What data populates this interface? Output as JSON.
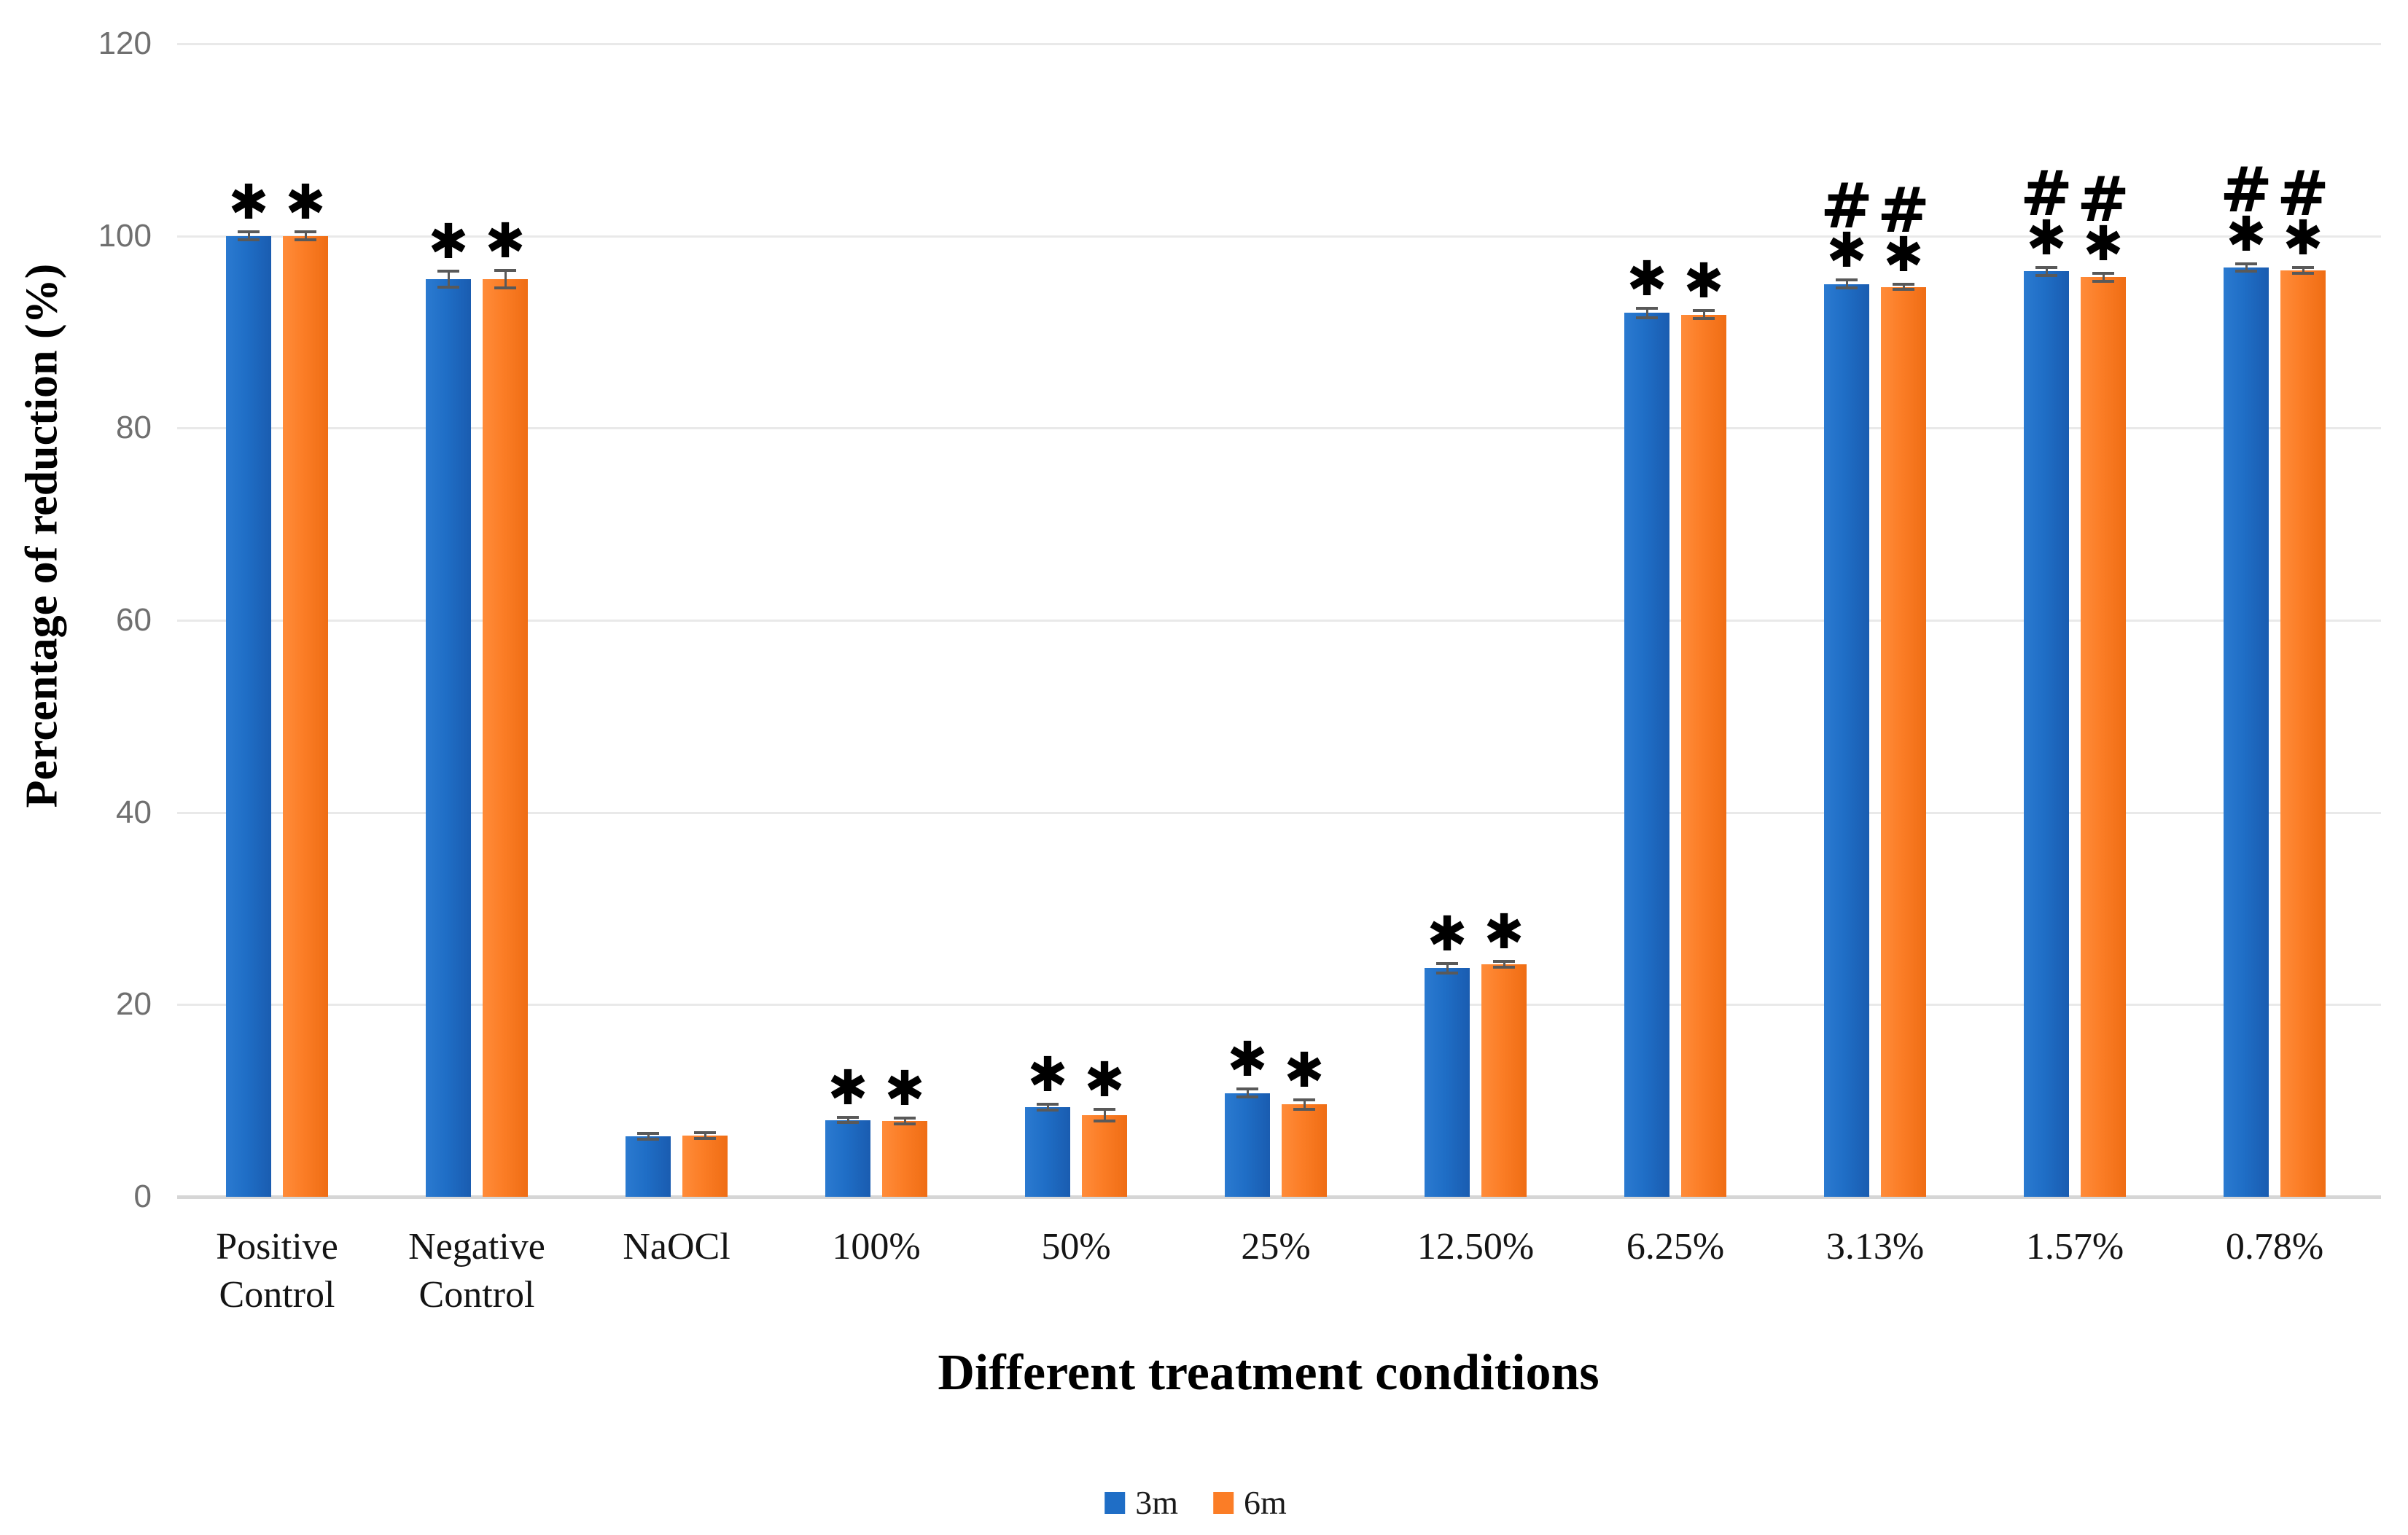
{
  "chart_data": {
    "type": "bar",
    "title": "",
    "xlabel": "Different treatment conditions",
    "ylabel": "Percentage of reduction (%)",
    "ylim": [
      0,
      120
    ],
    "yticks": [
      0,
      20,
      40,
      60,
      80,
      100,
      120
    ],
    "grid": true,
    "legend_position": "bottom-center",
    "categories": [
      "Positive\nControl",
      "Negative\nControl",
      "NaOCl",
      "100%",
      "50%",
      "25%",
      "12.50%",
      "6.25%",
      "3.13%",
      "1.57%",
      "0.78%"
    ],
    "series": [
      {
        "name": "3m",
        "color": "#1F6EC6",
        "values": [
          100,
          95.5,
          6.3,
          8.0,
          9.3,
          10.8,
          23.8,
          92.0,
          95.0,
          96.3,
          96.7
        ],
        "errors": [
          0.4,
          0.8,
          0.3,
          0.3,
          0.3,
          0.4,
          0.5,
          0.5,
          0.4,
          0.4,
          0.4
        ]
      },
      {
        "name": "6m",
        "color": "#FB7D26",
        "values": [
          100,
          95.5,
          6.4,
          7.9,
          8.5,
          9.6,
          24.2,
          91.8,
          94.7,
          95.7,
          96.4
        ],
        "errors": [
          0.4,
          0.9,
          0.3,
          0.3,
          0.6,
          0.5,
          0.3,
          0.4,
          0.3,
          0.4,
          0.3
        ]
      }
    ],
    "annotations": [
      [
        "*"
      ],
      [
        "*"
      ],
      [],
      [
        "*"
      ],
      [
        "*"
      ],
      [
        "*"
      ],
      [
        "*"
      ],
      [
        "*"
      ],
      [
        "#",
        "*"
      ],
      [
        "#",
        "*"
      ],
      [
        "#",
        "*"
      ]
    ],
    "annotation_symbols": {
      "star": "*",
      "hash": "#"
    }
  },
  "legend": {
    "items": [
      {
        "label": "3m",
        "color": "#1F6EC6"
      },
      {
        "label": "6m",
        "color": "#FB7D26"
      }
    ]
  }
}
